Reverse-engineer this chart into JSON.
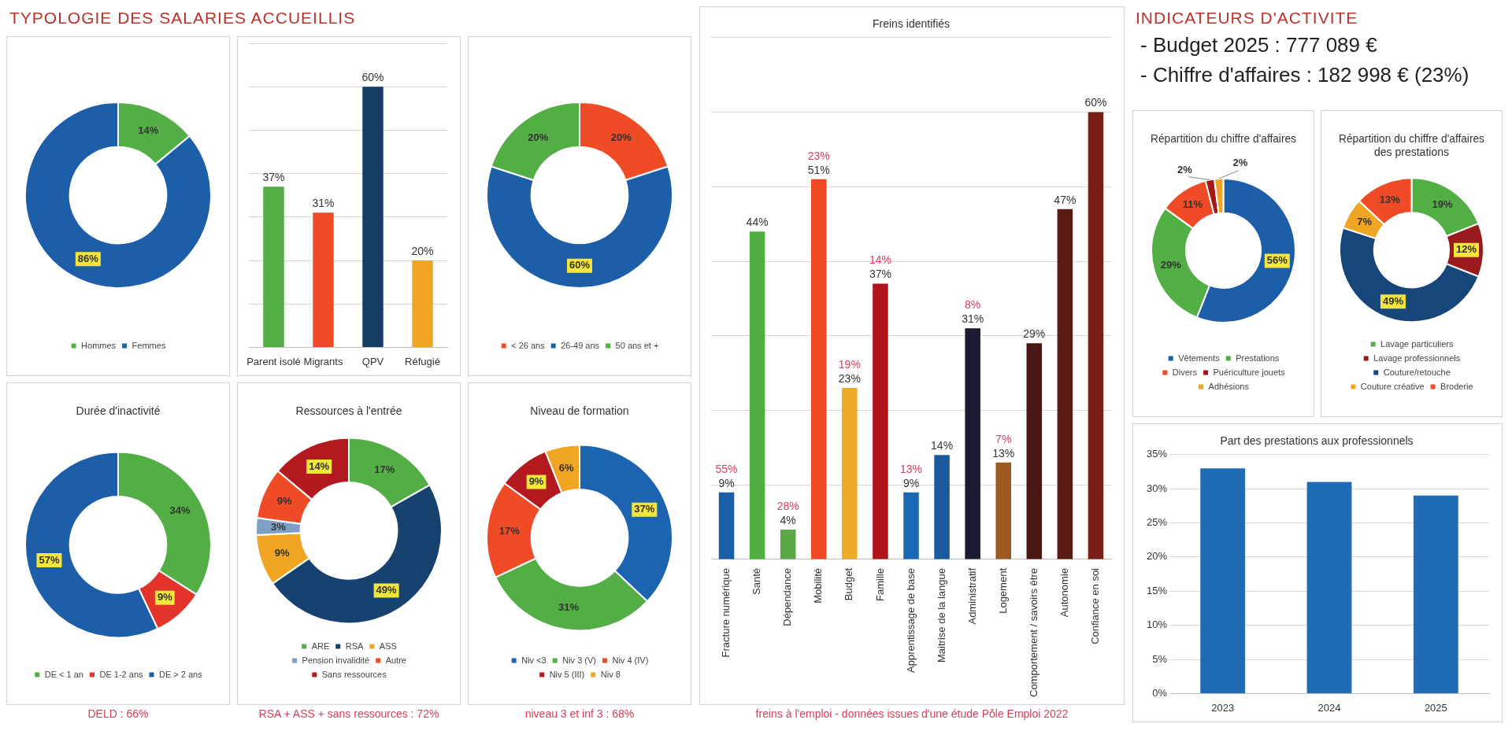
{
  "chart_data": [
    {
      "type": "other",
      "title": "TYPOLOGIE DES SALARIES ACCUEILLIS"
    },
    {
      "type": "donut",
      "categories": [
        "Hommes",
        "Femmes"
      ],
      "values": [
        14,
        86
      ],
      "colors": [
        "#52ae45",
        "#1c5fa8"
      ],
      "value_labels": [
        "14%",
        "86%"
      ],
      "legend": "bottom"
    },
    {
      "type": "bar",
      "categories": [
        "Parent isolé",
        "Migrants",
        "QPV",
        "Réfugié"
      ],
      "values": [
        37,
        31,
        60,
        20
      ],
      "colors": [
        "#52ae45",
        "#ee4b26",
        "#153c62",
        "#f0a523"
      ],
      "value_labels": [
        "37%",
        "31%",
        "60%",
        "20%"
      ],
      "ylim": [
        0,
        70
      ],
      "yticks": [
        {
          "value": 0,
          "label": null
        },
        {
          "value": 10,
          "label": null
        },
        {
          "value": 20,
          "label": null
        },
        {
          "value": 30,
          "label": null
        },
        {
          "value": 40,
          "label": null
        },
        {
          "value": 50,
          "label": null
        },
        {
          "value": 60,
          "label": null
        },
        {
          "value": 70,
          "label": null
        }
      ],
      "grid": "y",
      "tick_labels": "x"
    },
    {
      "type": "donut",
      "categories": [
        "< 26 ans",
        "26-49 ans",
        "50 ans et +"
      ],
      "values": [
        20,
        60,
        20
      ],
      "colors": [
        "#ee4b26",
        "#1c5fa8",
        "#52ae45"
      ],
      "value_labels": [
        "20%",
        "60%",
        "20%"
      ],
      "legend": "bottom"
    },
    {
      "type": "donut",
      "title": "Durée d'inactivité",
      "categories": [
        "DE < 1 an",
        "DE 1-2 ans",
        "DE > 2 ans"
      ],
      "values": [
        34,
        9,
        57
      ],
      "colors": [
        "#52ae45",
        "#e3342b",
        "#1c5fa8"
      ],
      "value_labels": [
        "34%",
        "9%",
        "57%"
      ],
      "legend": "bottom",
      "annotations": [
        "DELD : 66%"
      ]
    },
    {
      "type": "donut",
      "title": "Ressources à l'entrée",
      "categories": [
        "ARE",
        "RSA",
        "ASS",
        "Pension invalidité",
        "Autre",
        "Sans ressources"
      ],
      "values": [
        17,
        49,
        9,
        3,
        9,
        14
      ],
      "colors": [
        "#52ae45",
        "#17426f",
        "#f0a523",
        "#7f9fc6",
        "#ee4b26",
        "#b3191f"
      ],
      "value_labels": [
        "17%",
        "49%",
        "9%",
        "3%",
        "9%",
        "14%"
      ],
      "legend": "bottom",
      "annotations": [
        "RSA + ASS + sans ressources : 72%"
      ]
    },
    {
      "type": "donut",
      "title": "Niveau de formation",
      "categories": [
        "Niv <3",
        "Niv 3 (V)",
        "Niv 4 (IV)",
        "Niv 5 (III)",
        "Niv 8"
      ],
      "values": [
        37,
        31,
        17,
        9,
        6
      ],
      "colors": [
        "#1c63b0",
        "#52ae45",
        "#ee4b26",
        "#b3191f",
        "#f0a523"
      ],
      "value_labels": [
        "37%",
        "31%",
        "17%",
        "9%",
        "6%"
      ],
      "legend": "bottom",
      "annotations": [
        "niveau 3 et inf 3 : 68%"
      ]
    },
    {
      "type": "bar",
      "title": "Freins identifiés",
      "categories": [
        "Fracture numérique",
        "Santé",
        "Dépendance",
        "Mobilité",
        "Budget",
        "Famille",
        "Apprentissage de base",
        "Maitrise de la langue",
        "Administratif",
        "Logement",
        "Comportement / savoirs être",
        "Autonomie",
        "Confiance en soi"
      ],
      "values": [
        9,
        44,
        4,
        51,
        23,
        37,
        9,
        14,
        31,
        13,
        29,
        47,
        60
      ],
      "colors": [
        "#1a5fa8",
        "#4fae3f",
        "#5aa845",
        "#ef4a24",
        "#efaa2a",
        "#b0141c",
        "#1d68b5",
        "#195a9c",
        "#1a1a30",
        "#9c5a1e",
        "#4a1712",
        "#5c1a14",
        "#7a1e1a"
      ],
      "value_labels": [
        "9%",
        "44%",
        "4%",
        "51%",
        "23%",
        "37%",
        "9%",
        "14%",
        "31%",
        "13%",
        "29%",
        "47%",
        "60%"
      ],
      "ylim": [
        0,
        70
      ],
      "yticks": [
        {
          "value": 0,
          "label": null
        },
        {
          "value": 10,
          "label": null
        },
        {
          "value": 20,
          "label": null
        },
        {
          "value": 30,
          "label": null
        },
        {
          "value": 40,
          "label": null
        },
        {
          "value": 50,
          "label": null
        },
        {
          "value": 60,
          "label": null
        },
        {
          "value": 70,
          "label": null
        }
      ],
      "grid": "y",
      "tick_labels": "x",
      "annotations": [
        {
          "text": "55%",
          "x": "Fracture numérique",
          "y": 9
        },
        {
          "text": "28%",
          "x": "Dépendance",
          "y": 4
        },
        {
          "text": "23%",
          "x": "Mobilité",
          "y": 51
        },
        {
          "text": "19%",
          "x": "Budget",
          "y": 23
        },
        {
          "text": "14%",
          "x": "Famille",
          "y": 37
        },
        {
          "text": "13%",
          "x": "Apprentissage de base",
          "y": 9
        },
        {
          "text": "8%",
          "x": "Administratif",
          "y": 31
        },
        {
          "text": "7%",
          "x": "Logement",
          "y": 13
        },
        "freins à l'emploi - données issues d'une étude Pôle Emploi 2022"
      ]
    },
    {
      "type": "other",
      "title": "INDICATEURS D'ACTIVITE",
      "annotations": [
        "- Budget 2025 : 777 089 €",
        "- Chiffre d'affaires : 182 998 € (23%)"
      ]
    },
    {
      "type": "donut",
      "title": "Répartition du chiffre d'affaires",
      "categories": [
        "Vêtements",
        "Prestations",
        "Divers",
        "Puériculture jouets",
        "Adhésions"
      ],
      "values": [
        56,
        29,
        11,
        2,
        2
      ],
      "colors": [
        "#1c5fa8",
        "#52ae45",
        "#ee4b26",
        "#a3161c",
        "#f0a523"
      ],
      "value_labels": [
        "56%",
        "29%",
        "11%",
        "2%",
        "2%"
      ],
      "legend": "bottom"
    },
    {
      "type": "donut",
      "title": "Répartition du chiffre d'affaires des prestations",
      "categories": [
        "Lavage particuliers",
        "Lavage professionnels",
        "Couture/retouche",
        "Couture créative",
        "Broderie"
      ],
      "values": [
        19,
        12,
        49,
        7,
        13
      ],
      "colors": [
        "#52ae45",
        "#9a1b1e",
        "#17467a",
        "#f0a523",
        "#ee4b26"
      ],
      "value_labels": [
        "19%",
        "12%",
        "49%",
        "7%",
        "13%"
      ],
      "legend": "bottom"
    },
    {
      "type": "bar",
      "title": "Part des prestations aux professionnels",
      "categories": [
        "2023",
        "2024",
        "2025"
      ],
      "values": [
        33,
        31,
        29
      ],
      "color": "#1f6bb5",
      "ylim": [
        0,
        35
      ],
      "yticks": [
        {
          "value": 0,
          "label": "0%"
        },
        {
          "value": 5,
          "label": "5%"
        },
        {
          "value": 10,
          "label": "10%"
        },
        {
          "value": 15,
          "label": "15%"
        },
        {
          "value": 20,
          "label": "20%"
        },
        {
          "value": 25,
          "label": "25%"
        },
        {
          "value": 30,
          "label": "30%"
        },
        {
          "value": 35,
          "label": "35%"
        }
      ],
      "grid": "y"
    }
  ]
}
